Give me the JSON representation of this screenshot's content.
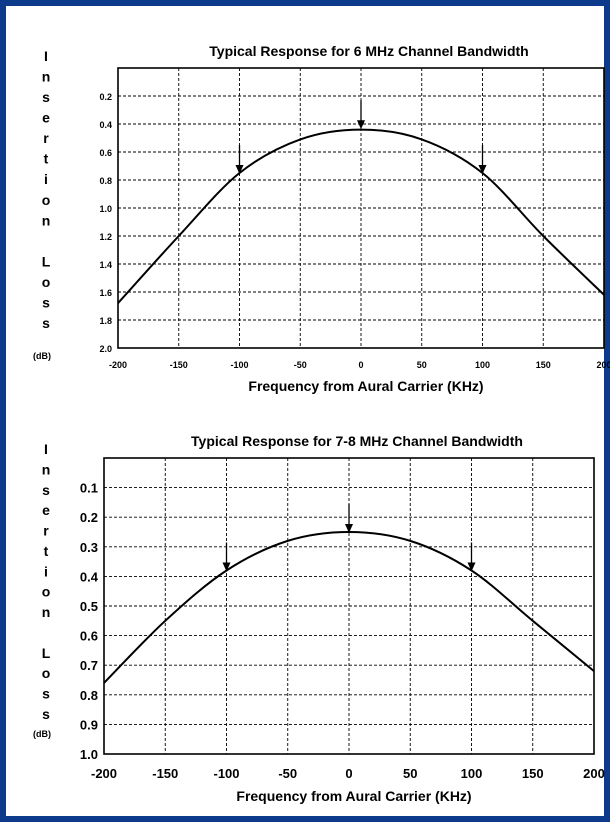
{
  "frame": {
    "border_color": "#0d3a8a"
  },
  "chart_data": [
    {
      "type": "line",
      "title": "Typical Response for 6 MHz Channel Bandwidth",
      "xlabel": "Frequency from Aural Carrier (KHz)",
      "ylabel": "Insertion Loss",
      "ylabel_unit": "(dB)",
      "xlim": [
        -200,
        200
      ],
      "ylim": [
        2.0,
        0.0
      ],
      "y_inverted": true,
      "grid": true,
      "xticks": [
        -200,
        -150,
        -100,
        -50,
        0,
        50,
        100,
        150,
        200
      ],
      "yticks": [
        0.2,
        0.4,
        0.6,
        0.8,
        1.0,
        1.2,
        1.4,
        1.6,
        1.8,
        2.0
      ],
      "ytick_labels": [
        "0.2",
        "0.4",
        "0.6",
        "0.8",
        "1.0",
        "1.2",
        "1.4",
        "1.6",
        "1.8",
        "2.0"
      ],
      "series": [
        {
          "x": [
            -200,
            -150,
            -100,
            -50,
            0,
            50,
            100,
            150,
            200
          ],
          "y": [
            1.68,
            1.2,
            0.75,
            0.51,
            0.44,
            0.51,
            0.75,
            1.2,
            1.62
          ]
        }
      ],
      "markers": [
        {
          "x": -100,
          "y": 0.75
        },
        {
          "x": 0,
          "y": 0.43
        },
        {
          "x": 100,
          "y": 0.75
        }
      ]
    },
    {
      "type": "line",
      "title": "Typical Response for 7-8 MHz Channel Bandwidth",
      "xlabel": "Frequency from Aural Carrier (KHz)",
      "ylabel": "Insertion Loss",
      "ylabel_unit": "(dB)",
      "xlim": [
        -200,
        200
      ],
      "ylim": [
        1.0,
        0.0
      ],
      "y_inverted": true,
      "grid": true,
      "xticks": [
        -200,
        -150,
        -100,
        -50,
        0,
        50,
        100,
        150,
        200
      ],
      "yticks": [
        0.1,
        0.2,
        0.3,
        0.4,
        0.5,
        0.6,
        0.7,
        0.8,
        0.9,
        1.0
      ],
      "ytick_labels": [
        "0.1",
        "0.2",
        "0.3",
        "0.4",
        "0.5",
        "0.6",
        "0.7",
        "0.8",
        "0.9",
        "1.0"
      ],
      "series": [
        {
          "x": [
            -200,
            -150,
            -100,
            -50,
            0,
            50,
            100,
            150,
            200
          ],
          "y": [
            0.76,
            0.55,
            0.38,
            0.28,
            0.25,
            0.28,
            0.38,
            0.55,
            0.72
          ]
        }
      ],
      "markers": [
        {
          "x": -100,
          "y": 0.38
        },
        {
          "x": 0,
          "y": 0.25
        },
        {
          "x": 100,
          "y": 0.38
        }
      ]
    }
  ]
}
